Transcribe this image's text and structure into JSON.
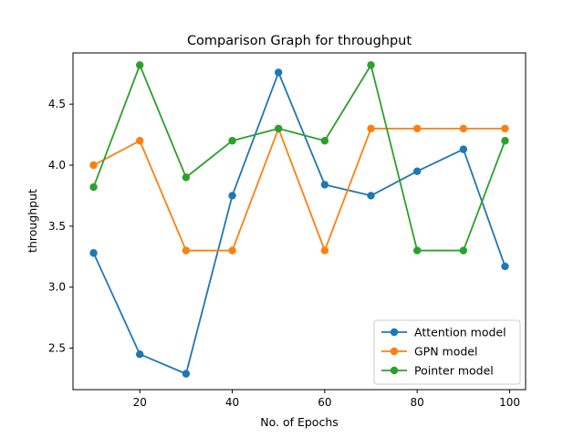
{
  "chart_data": {
    "type": "line",
    "title": "Comparison Graph for throughput",
    "xlabel": "No. of Epochs",
    "ylabel": "throughput",
    "x": [
      10,
      20,
      30,
      40,
      50,
      60,
      70,
      80,
      90,
      99
    ],
    "xlim": [
      5.55,
      103.45
    ],
    "ylim": [
      2.16,
      4.92
    ],
    "xticks": [
      20,
      40,
      60,
      80,
      100
    ],
    "yticks": [
      2.5,
      3.0,
      3.5,
      4.0,
      4.5
    ],
    "xtick_labels": [
      "20",
      "40",
      "60",
      "80",
      "100"
    ],
    "ytick_labels": [
      "2.5",
      "3.0",
      "3.5",
      "4.0",
      "4.5"
    ],
    "grid": false,
    "legend_position": "lower-right",
    "series": [
      {
        "name": "Attention model",
        "color": "#1f77b4",
        "values": [
          3.28,
          2.45,
          2.29,
          3.75,
          4.76,
          3.84,
          3.75,
          3.95,
          4.13,
          3.17
        ]
      },
      {
        "name": "GPN model",
        "color": "#ff7f0e",
        "values": [
          4.0,
          4.2,
          3.3,
          3.3,
          4.3,
          3.3,
          4.3,
          4.3,
          4.3,
          4.3
        ]
      },
      {
        "name": "Pointer model",
        "color": "#2ca02c",
        "values": [
          3.82,
          4.82,
          3.9,
          4.2,
          4.3,
          4.2,
          4.82,
          3.3,
          3.3,
          4.2
        ]
      }
    ]
  }
}
